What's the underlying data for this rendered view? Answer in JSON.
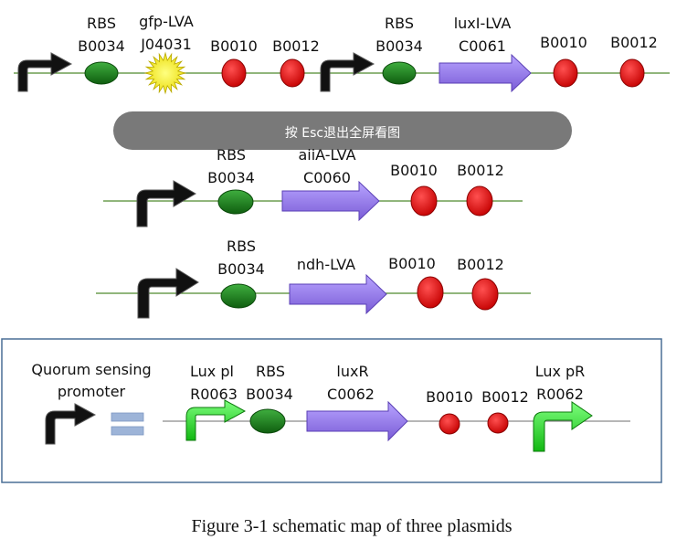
{
  "overlay": {
    "message": "按 Esc退出全屏看图"
  },
  "rows": [
    {
      "parts": [
        {
          "type": "promoter",
          "lines": []
        },
        {
          "type": "rbs",
          "lines": [
            "RBS",
            "B0034"
          ]
        },
        {
          "type": "reporter",
          "lines": [
            "gfp-LVA",
            "J04031"
          ]
        },
        {
          "type": "terminator",
          "lines": [
            "B0010"
          ]
        },
        {
          "type": "terminator",
          "lines": [
            "B0012"
          ]
        },
        {
          "type": "promoter",
          "lines": []
        },
        {
          "type": "rbs",
          "lines": [
            "RBS",
            "B0034"
          ]
        },
        {
          "type": "cds",
          "lines": [
            "luxI-LVA",
            "C0061"
          ]
        },
        {
          "type": "terminator",
          "lines": [
            "B0010"
          ]
        },
        {
          "type": "terminator",
          "lines": [
            "B0012"
          ]
        }
      ]
    },
    {
      "parts": [
        {
          "type": "promoter",
          "lines": []
        },
        {
          "type": "rbs",
          "lines": [
            "RBS",
            "B0034"
          ]
        },
        {
          "type": "cds",
          "lines": [
            "aiiA-LVA",
            "C0060"
          ]
        },
        {
          "type": "terminator",
          "lines": [
            "B0010"
          ]
        },
        {
          "type": "terminator",
          "lines": [
            "B0012"
          ]
        }
      ]
    },
    {
      "parts": [
        {
          "type": "promoter",
          "lines": []
        },
        {
          "type": "rbs",
          "lines": [
            "RBS",
            "B0034"
          ]
        },
        {
          "type": "cds",
          "lines": [
            "ndh-LVA"
          ]
        },
        {
          "type": "terminator",
          "lines": [
            "B0010"
          ]
        },
        {
          "type": "terminator",
          "lines": [
            "B0012"
          ]
        }
      ]
    }
  ],
  "legend": {
    "key_lines": [
      "Quorum sensing",
      "promoter"
    ],
    "parts": [
      {
        "type": "lux-promoter",
        "lines": [
          "Lux pl",
          "R0063"
        ]
      },
      {
        "type": "rbs",
        "lines": [
          "RBS",
          "B0034"
        ]
      },
      {
        "type": "cds",
        "lines": [
          "luxR",
          "C0062"
        ]
      },
      {
        "type": "terminator",
        "lines": [
          "B0010"
        ]
      },
      {
        "type": "terminator",
        "lines": [
          "B0012"
        ]
      },
      {
        "type": "lux-promoter-right",
        "lines": [
          "Lux pR",
          "R0062"
        ]
      }
    ]
  },
  "caption": "Figure 3-1 schematic  map of three plasmids",
  "colors": {
    "backbone": "#4f8a2f",
    "legend_backbone": "#8c8c8c",
    "promoter": "#111111",
    "rbs": "#1c7a1c",
    "reporter": "#f2e600",
    "cds": "#9a7fe6",
    "terminator": "#e01818",
    "lux_promoter": "#33e033",
    "legend_border": "#4a6f95",
    "equals": "#9db4d8",
    "overlay": "#6f6f6f"
  }
}
